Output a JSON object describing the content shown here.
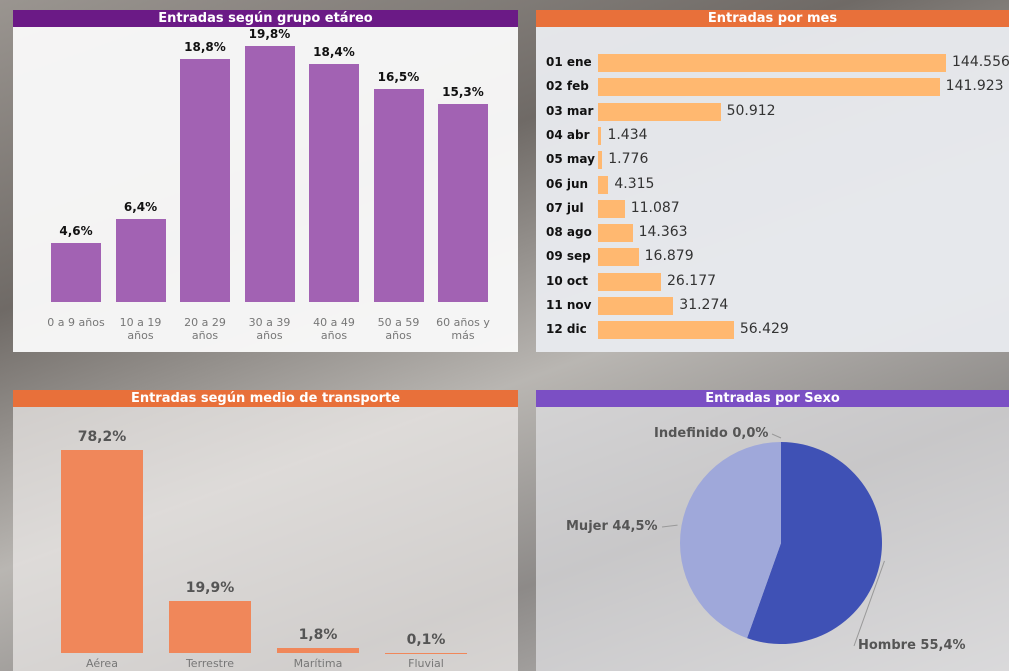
{
  "chart_data": [
    {
      "type": "bar",
      "title": "Entradas según grupo etáreo",
      "categories": [
        "0 a 9 años",
        "10 a 19 años",
        "20 a 29 años",
        "30 a 39 años",
        "40 a 49 años",
        "50 a 59 años",
        "60 años y más"
      ],
      "values": [
        4.6,
        6.4,
        18.8,
        19.8,
        18.4,
        16.5,
        15.3
      ],
      "value_labels": [
        "4,6%",
        "6,4%",
        "18,8%",
        "19,8%",
        "18,4%",
        "16,5%",
        "15,3%"
      ],
      "color": "#a262b3",
      "header_color": "#6b1a86"
    },
    {
      "type": "hbar",
      "title": "Entradas por mes",
      "categories": [
        "01 ene",
        "02 feb",
        "03 mar",
        "04 abr",
        "05 may",
        "06 jun",
        "07 jul",
        "08 ago",
        "09 sep",
        "10 oct",
        "11 nov",
        "12 dic"
      ],
      "values": [
        144556,
        141923,
        50912,
        1434,
        1776,
        4315,
        11087,
        14363,
        16879,
        26177,
        31274,
        56429
      ],
      "value_labels": [
        "144.556",
        "141.923",
        "50.912",
        "1.434",
        "1.776",
        "4.315",
        "11.087",
        "14.363",
        "16.879",
        "26.177",
        "31.274",
        "56.429"
      ],
      "color": "#ffb870",
      "header_color": "#e8703a"
    },
    {
      "type": "bar",
      "title": "Entradas según medio de transporte",
      "categories": [
        "Aérea",
        "Terrestre",
        "Marítima",
        "Fluvial"
      ],
      "values": [
        78.2,
        19.9,
        1.8,
        0.1
      ],
      "value_labels": [
        "78,2%",
        "19,9%",
        "1,8%",
        "0,1%"
      ],
      "color": "#f0875a",
      "header_color": "#e8703a"
    },
    {
      "type": "pie",
      "title": "Entradas por Sexo",
      "categories": [
        "Hombre",
        "Mujer",
        "Indefinido"
      ],
      "values": [
        55.4,
        44.5,
        0.0
      ],
      "value_labels": [
        "55,4%",
        "44,5%",
        "0,0%"
      ],
      "colors": [
        "#3f51b5",
        "#9fa8da",
        "#5c6bc0"
      ],
      "header_color": "#7b4fc4"
    }
  ]
}
